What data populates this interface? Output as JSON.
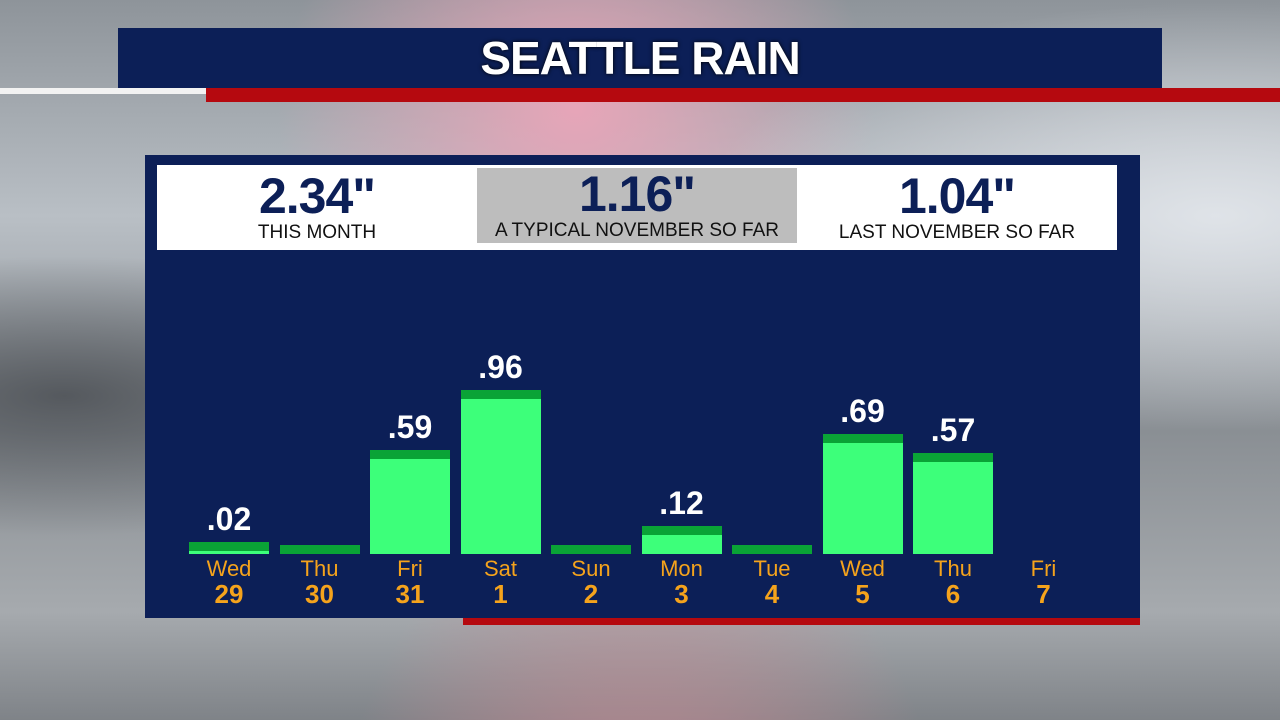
{
  "title": "SEATTLE RAIN",
  "stats": [
    {
      "value": "2.34\"",
      "label": "THIS MONTH"
    },
    {
      "value": "1.16\"",
      "label": "A TYPICAL NOVEMBER SO FAR"
    },
    {
      "value": "1.04\"",
      "label": "LAST NOVEMBER SO FAR"
    }
  ],
  "chart_data": {
    "type": "bar",
    "title": "SEATTLE RAIN",
    "categories": [
      "Wed 29",
      "Thu 30",
      "Fri 31",
      "Sat 1",
      "Sun 2",
      "Mon 3",
      "Tue 4",
      "Wed 5",
      "Thu 6",
      "Fri 7"
    ],
    "days": [
      "Wed",
      "Thu",
      "Fri",
      "Sat",
      "Sun",
      "Mon",
      "Tue",
      "Wed",
      "Thu",
      "Fri"
    ],
    "dates": [
      "29",
      "30",
      "31",
      "1",
      "2",
      "3",
      "4",
      "5",
      "6",
      "7"
    ],
    "values": [
      0.02,
      0,
      0.59,
      0.96,
      0,
      0.12,
      0,
      0.69,
      0.57,
      null
    ],
    "data_labels": [
      ".02",
      "",
      ".59",
      ".96",
      "",
      ".12",
      "",
      ".69",
      ".57",
      ""
    ],
    "colors": {
      "bar": "#3dff7a",
      "cap": "#0aa336",
      "day_label": "#f5a31c"
    }
  }
}
